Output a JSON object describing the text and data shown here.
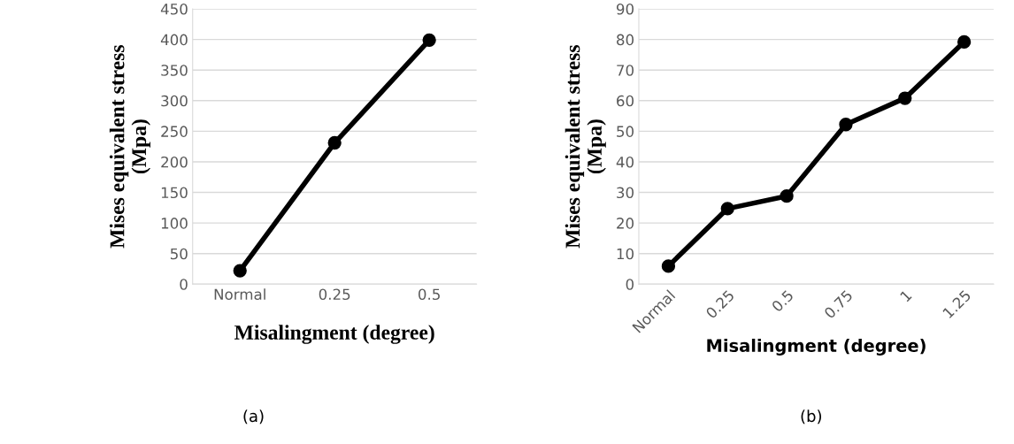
{
  "chart_data": [
    {
      "type": "line",
      "categories": [
        "Normal",
        "0.25",
        "0.5"
      ],
      "xlabel": "Misalingment (degree)",
      "ylabel": "Mises equivalent stress\n(Mpa)",
      "ylim": [
        0,
        450
      ],
      "yticks": [
        0,
        50,
        100,
        150,
        200,
        250,
        300,
        350,
        400,
        450
      ],
      "grid": "y",
      "marker": "circle",
      "line_style": "solid",
      "series": [
        {
          "color": "#000000",
          "values": [
            22,
            231,
            399
          ]
        }
      ],
      "annotations": [
        "(a)"
      ]
    },
    {
      "type": "line",
      "categories": [
        "Normal",
        "0.25",
        "0.5",
        "0.75",
        "1",
        "1.25"
      ],
      "xlabel": "Misalingment (degree)",
      "ylabel": "Mises equivalent stress\n(Mpa)",
      "ylim": [
        0,
        90
      ],
      "yticks": [
        0,
        10,
        20,
        30,
        40,
        50,
        60,
        70,
        80,
        90
      ],
      "grid": "y",
      "marker": "circle",
      "line_style": "solid",
      "series": [
        {
          "color": "#000000",
          "values": [
            5.9,
            24.7,
            28.8,
            52.2,
            60.8,
            79.2
          ]
        }
      ],
      "annotations": [
        "(b)"
      ]
    }
  ]
}
